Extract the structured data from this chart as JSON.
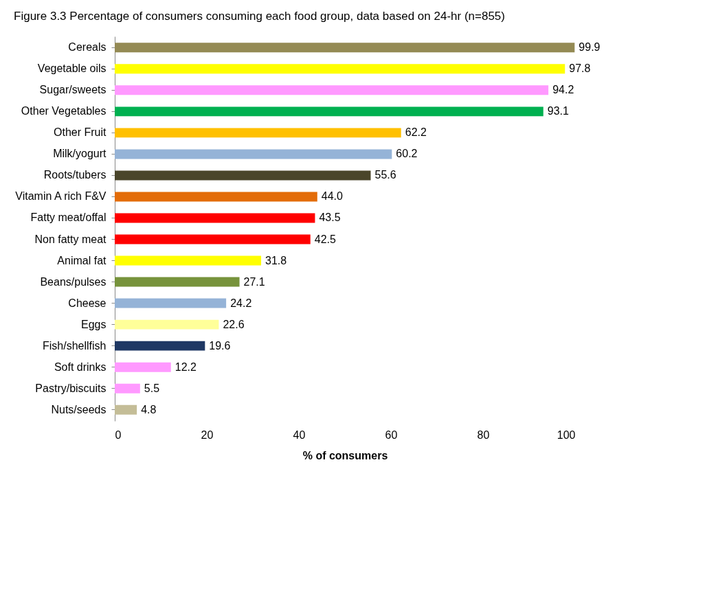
{
  "chart_data": {
    "type": "bar",
    "orientation": "horizontal",
    "title": "Figure 3.3 Percentage of consumers consuming each food group, data based on 24-hr (n=855)",
    "xlabel": "% of consumers",
    "categories": [
      "Cereals",
      "Vegetable oils",
      "Sugar/sweets",
      "Other Vegetables",
      "Other Fruit",
      "Milk/yogurt",
      "Roots/tubers",
      "Vitamin A rich F&V",
      "Fatty meat/offal",
      "Non fatty meat",
      "Animal fat",
      "Beans/pulses",
      "Cheese",
      "Eggs",
      "Fish/shellfish",
      "Soft drinks",
      "Pastry/biscuits",
      "Nuts/seeds"
    ],
    "values": [
      99.9,
      97.8,
      94.2,
      93.1,
      62.2,
      60.2,
      55.6,
      44.0,
      43.5,
      42.5,
      31.8,
      27.1,
      24.2,
      22.6,
      19.6,
      12.2,
      5.5,
      4.8
    ],
    "value_labels": [
      "99.9",
      "97.8",
      "94.2",
      "93.1",
      "62.2",
      "60.2",
      "55.6",
      "44.0",
      "43.5",
      "42.5",
      "31.8",
      "27.1",
      "24.2",
      "22.6",
      "19.6",
      "12.2",
      "5.5",
      "4.8"
    ],
    "colors": [
      "#948a54",
      "#ffff00",
      "#ff99ff",
      "#00b050",
      "#ffc000",
      "#95b3d7",
      "#4a452a",
      "#e36c09",
      "#ff0000",
      "#ff0000",
      "#ffff00",
      "#77933c",
      "#95b3d7",
      "#ffff99",
      "#1f3864",
      "#ff99ff",
      "#ff99ff",
      "#c4bd97"
    ],
    "xlim": [
      0,
      100
    ],
    "xticks": [
      0,
      20,
      40,
      60,
      80,
      100
    ],
    "grid": false
  }
}
